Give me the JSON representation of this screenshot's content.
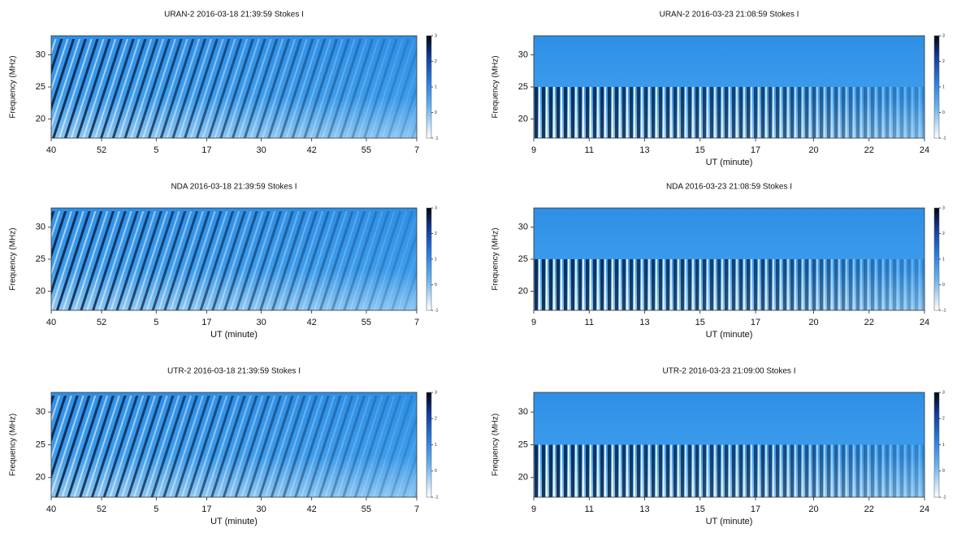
{
  "chart_data": [
    {
      "type": "spectrogram",
      "title": "URAN-2  2016-03-18 21:39:59  Stokes I",
      "ylabel": "Frequency (MHz)",
      "xlim": [
        40,
        127
      ],
      "xticks": [
        40,
        52,
        {
          "value": 65,
          "label": "5"
        },
        {
          "value": 77,
          "label": "17"
        },
        {
          "value": 90,
          "label": "30"
        },
        {
          "value": 102,
          "label": "42"
        },
        {
          "value": 115,
          "label": "55"
        },
        {
          "value": 127,
          "label": "7"
        }
      ],
      "ylim": [
        17,
        33
      ],
      "yticks": [
        20,
        25,
        30
      ],
      "clim": [
        -1,
        3
      ],
      "cticks": [
        -1,
        0,
        1,
        2,
        3
      ]
    },
    {
      "type": "spectrogram",
      "title": "URAN-2  2016-03-23 21:08:59  Stokes I",
      "xlabel": "UT (minute)",
      "ylabel": "Frequency (MHz)",
      "xlim": [
        9,
        23.8
      ],
      "xticks": [
        9,
        {
          "value": 11.1,
          "label": "11"
        },
        {
          "value": 13.2,
          "label": "13"
        },
        {
          "value": 15.3,
          "label": "15"
        },
        {
          "value": 17.4,
          "label": "17"
        },
        {
          "value": 19.6,
          "label": "20"
        },
        {
          "value": 21.7,
          "label": "22"
        },
        {
          "value": 23.8,
          "label": "24"
        }
      ],
      "ylim": [
        17,
        33
      ],
      "yticks": [
        20,
        25,
        30
      ],
      "clim": [
        -1,
        3
      ],
      "cticks": [
        -1,
        0,
        1,
        2,
        3
      ]
    },
    {
      "type": "spectrogram",
      "title": "NDA  2016-03-18 21:39:59  Stokes I",
      "xlabel": "UT (minute)",
      "ylabel": "Frequency (MHz)",
      "xlim": [
        40,
        127
      ],
      "xticks": [
        40,
        52,
        {
          "value": 65,
          "label": "5"
        },
        {
          "value": 77,
          "label": "17"
        },
        {
          "value": 90,
          "label": "30"
        },
        {
          "value": 102,
          "label": "42"
        },
        {
          "value": 115,
          "label": "55"
        },
        {
          "value": 127,
          "label": "7"
        }
      ],
      "ylim": [
        17,
        33
      ],
      "yticks": [
        20,
        25,
        30
      ],
      "clim": [
        -1,
        3
      ],
      "cticks": [
        -1,
        0,
        1,
        2,
        3
      ]
    },
    {
      "type": "spectrogram",
      "title": "NDA  2016-03-23 21:08:59  Stokes I",
      "xlabel": "UT (minute)",
      "ylabel": "Frequency (MHz)",
      "xlim": [
        9,
        23.8
      ],
      "xticks": [
        9,
        {
          "value": 11.1,
          "label": "11"
        },
        {
          "value": 13.2,
          "label": "13"
        },
        {
          "value": 15.3,
          "label": "15"
        },
        {
          "value": 17.4,
          "label": "17"
        },
        {
          "value": 19.6,
          "label": "20"
        },
        {
          "value": 21.7,
          "label": "22"
        },
        {
          "value": 23.8,
          "label": "24"
        }
      ],
      "ylim": [
        17,
        33
      ],
      "yticks": [
        20,
        25,
        30
      ],
      "clim": [
        -1,
        3
      ],
      "cticks": [
        -1,
        0,
        1,
        2,
        3
      ]
    },
    {
      "type": "spectrogram",
      "title": "UTR-2  2016-03-18 21:39:59  Stokes I",
      "xlabel": "UT (minute)",
      "ylabel": "Frequency (MHz)",
      "xlim": [
        40,
        127
      ],
      "xticks": [
        40,
        52,
        {
          "value": 65,
          "label": "5"
        },
        {
          "value": 77,
          "label": "17"
        },
        {
          "value": 90,
          "label": "30"
        },
        {
          "value": 102,
          "label": "42"
        },
        {
          "value": 115,
          "label": "55"
        },
        {
          "value": 127,
          "label": "7"
        }
      ],
      "ylim": [
        17,
        33
      ],
      "yticks": [
        20,
        25,
        30
      ],
      "clim": [
        -1,
        3
      ],
      "cticks": [
        -1,
        0,
        1,
        2,
        3
      ]
    },
    {
      "type": "spectrogram",
      "title": "UTR-2  2016-03-23 21:09:00  Stokes I",
      "xlabel": "UT (minute)",
      "ylabel": "Frequency (MHz)",
      "xlim": [
        9,
        23.8
      ],
      "xticks": [
        9,
        {
          "value": 11.1,
          "label": "11"
        },
        {
          "value": 13.2,
          "label": "13"
        },
        {
          "value": 15.3,
          "label": "15"
        },
        {
          "value": 17.4,
          "label": "17"
        },
        {
          "value": 19.6,
          "label": "20"
        },
        {
          "value": 21.7,
          "label": "22"
        },
        {
          "value": 23.8,
          "label": "24"
        }
      ],
      "ylim": [
        17,
        33
      ],
      "yticks": [
        20,
        25,
        30
      ],
      "clim": [
        -1,
        3
      ],
      "cticks": [
        -1,
        0,
        1,
        2,
        3
      ]
    }
  ]
}
